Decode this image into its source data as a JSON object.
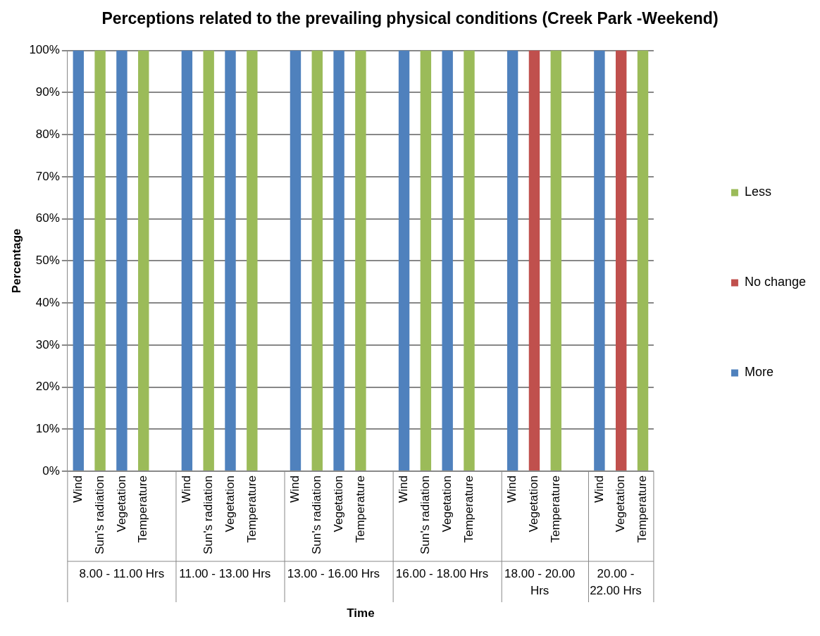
{
  "chart_data": {
    "type": "bar",
    "title": "Perceptions related to the prevailing physical conditions (Creek Park -Weekend)",
    "xlabel": "Time",
    "ylabel": "Percentage",
    "stacked": true,
    "grid": "y",
    "legend": "right",
    "categories": [
      "Wind",
      "Sun's radiation",
      "Vegetation",
      "Temperature",
      null,
      "Wind",
      "Sun's radiation",
      "Vegetation",
      "Temperature",
      null,
      "Wind",
      "Sun's radiation",
      "Vegetation",
      "Temperature",
      null,
      "Wind",
      "Sun's radiation",
      "Vegetation",
      "Temperature",
      null,
      "Wind",
      "Vegetation",
      "Temperature",
      null,
      "Wind",
      "Vegetation",
      "Temperature"
    ],
    "annotations": [
      "8.00 - 11.00 Hrs",
      "11.00 - 13.00 Hrs",
      "13.00 - 16.00 Hrs",
      "16.00 - 18.00 Hrs",
      "18.00 - 20.00 Hrs",
      "20.00 - 22.00 Hrs"
    ],
    "ylim": [
      0,
      100
    ],
    "yticks": [
      {
        "value": 0,
        "label": "0%"
      },
      {
        "value": 10,
        "label": "10%"
      },
      {
        "value": 20,
        "label": "20%"
      },
      {
        "value": 30,
        "label": "30%"
      },
      {
        "value": 40,
        "label": "40%"
      },
      {
        "value": 50,
        "label": "50%"
      },
      {
        "value": 60,
        "label": "60%"
      },
      {
        "value": 70,
        "label": "70%"
      },
      {
        "value": 80,
        "label": "80%"
      },
      {
        "value": 90,
        "label": "90%"
      },
      {
        "value": 100,
        "label": "100%"
      }
    ],
    "series": [
      {
        "name": "More",
        "color": "#4f81bd",
        "values": [
          100,
          0,
          100,
          0,
          null,
          100,
          0,
          100,
          0,
          null,
          100,
          0,
          100,
          0,
          null,
          100,
          0,
          100,
          0,
          null,
          100,
          0,
          0,
          null,
          100,
          0,
          0
        ]
      },
      {
        "name": "No change",
        "color": "#c0504d",
        "values": [
          0,
          0,
          0,
          0,
          null,
          0,
          0,
          0,
          0,
          null,
          0,
          0,
          0,
          0,
          null,
          0,
          0,
          0,
          0,
          null,
          0,
          100,
          0,
          null,
          0,
          100,
          0
        ]
      },
      {
        "name": "Less",
        "color": "#9bbb59",
        "values": [
          0,
          100,
          0,
          100,
          null,
          0,
          100,
          0,
          100,
          null,
          0,
          100,
          0,
          100,
          null,
          0,
          100,
          0,
          100,
          null,
          0,
          0,
          100,
          null,
          0,
          0,
          100
        ]
      }
    ]
  }
}
